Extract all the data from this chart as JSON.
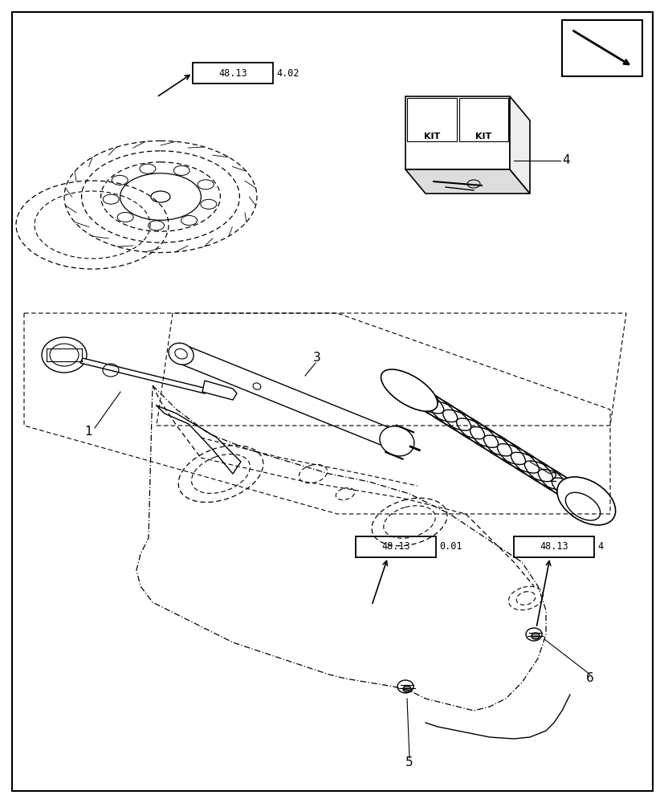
{
  "background_color": "#ffffff",
  "figure_width": 8.28,
  "figure_height": 10.0,
  "dpi": 100,
  "border_color": "#000000",
  "ref_box1_text": "48.13",
  "ref_box1_suffix": "0.01",
  "ref_box2_text": "48.13",
  "ref_box2_suffix": "4",
  "ref_box3_text": "48.13",
  "ref_box3_suffix": "4.02"
}
